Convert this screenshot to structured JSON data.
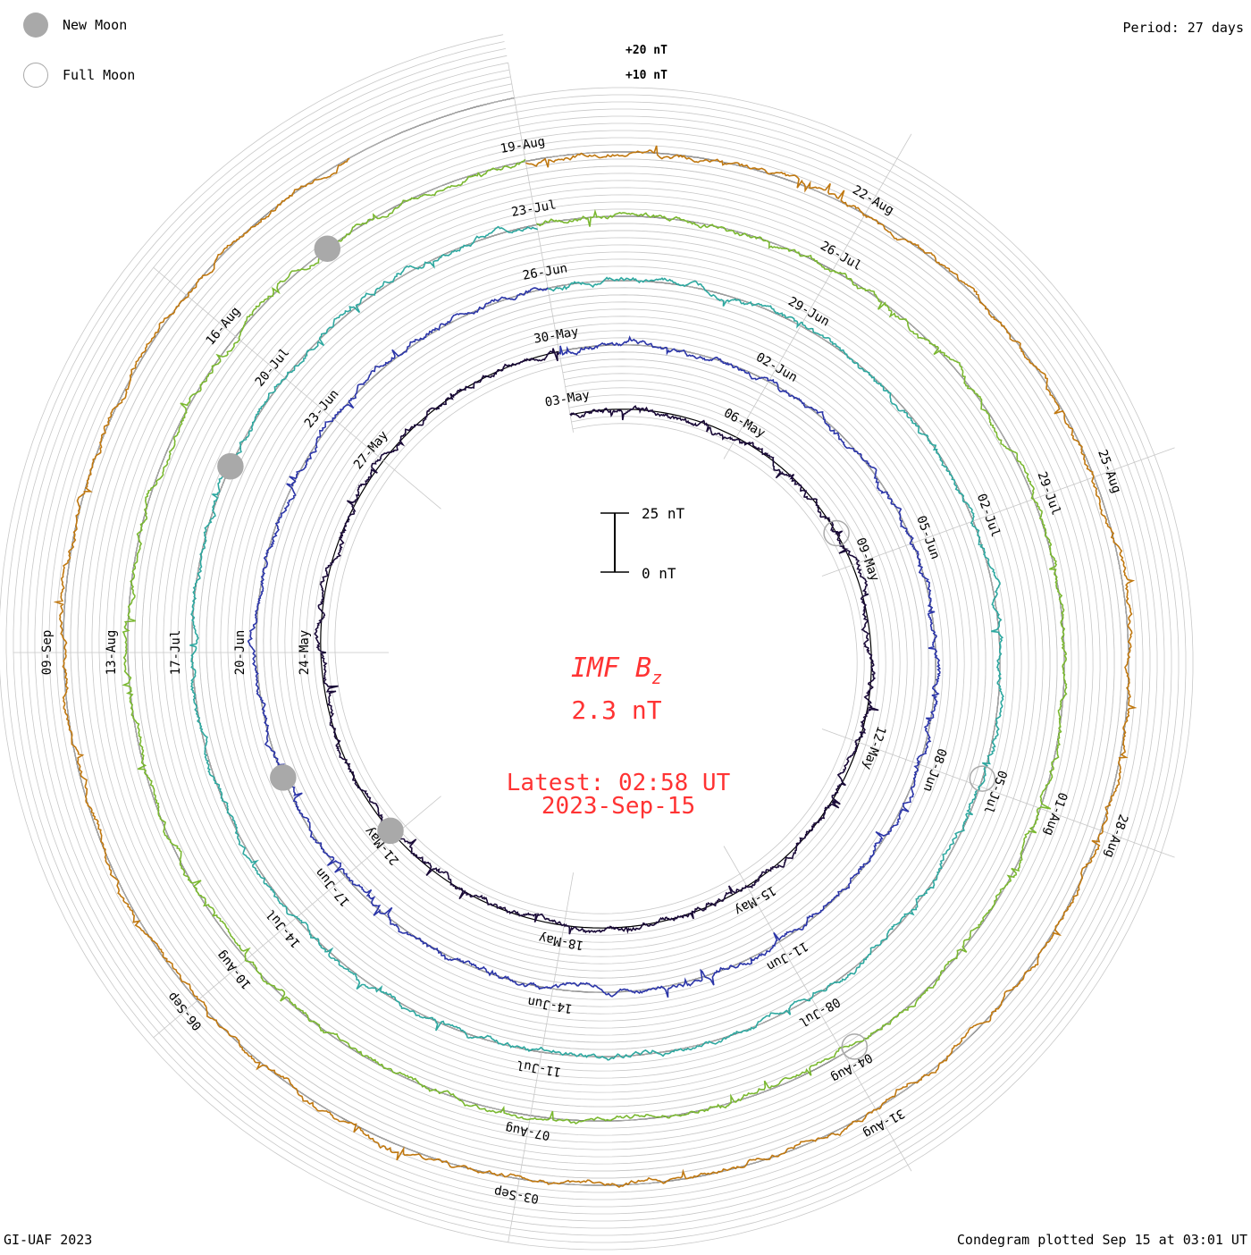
{
  "legend": {
    "new_moon_label": "New Moon",
    "full_moon_label": "Full Moon"
  },
  "period_label": "Period: 27 days",
  "footer_left": "GI-UAF 2023",
  "footer_right": "Condegram plotted Sep 15 at 03:01 UT",
  "scale": {
    "ref_high": "+20 nT",
    "ref_mid": "+10 nT",
    "bar_top": "25 nT",
    "bar_bottom": "0 nT"
  },
  "center": {
    "title_main": "IMF B",
    "title_sub": "z",
    "value": "2.3 nT",
    "latest": "Latest: 02:58 UT",
    "date": "2023-Sep-15"
  },
  "colors": {
    "grid": "#c8c8c8",
    "text_accent": "#ff3333",
    "moon": "#a9a9a9"
  },
  "chart_data": {
    "type": "line",
    "layout": "spiral-condegram",
    "period_days": 27,
    "title": "IMF Bz",
    "units": "nT",
    "spokes": [
      {
        "ring": 0,
        "dates": [
          "03-May",
          "06-May",
          "09-May",
          "12-May",
          "15-May",
          "18-May",
          "21-May",
          "24-May",
          "27-May"
        ]
      },
      {
        "ring": 1,
        "dates": [
          "30-May",
          "02-Jun",
          "05-Jun",
          "08-Jun",
          "11-Jun",
          "14-Jun",
          "17-Jun",
          "20-Jun",
          "23-Jun"
        ]
      },
      {
        "ring": 2,
        "dates": [
          "26-Jun",
          "29-Jun",
          "02-Jul",
          "05-Jul",
          "08-Jul",
          "11-Jul",
          "14-Jul",
          "17-Jul",
          "20-Jul"
        ]
      },
      {
        "ring": 3,
        "dates": [
          "23-Jul",
          "26-Jul",
          "29-Jul",
          "01-Aug",
          "04-Aug",
          "07-Aug",
          "10-Aug",
          "13-Aug",
          "16-Aug"
        ]
      },
      {
        "ring": 4,
        "dates": [
          "19-Aug",
          "22-Aug",
          "25-Aug",
          "28-Aug",
          "31-Aug",
          "03-Sep",
          "06-Sep",
          "09-Sep"
        ]
      }
    ],
    "series": [
      {
        "ring": 0,
        "color": "#1a0a38",
        "start": "2023-05-01",
        "end": "2023-05-28"
      },
      {
        "ring": 1,
        "color": "#2b35a8",
        "start": "2023-05-28",
        "end": "2023-06-24"
      },
      {
        "ring": 2,
        "color": "#2ea8a0",
        "start": "2023-06-24",
        "end": "2023-07-21"
      },
      {
        "ring": 3,
        "color": "#7ab830",
        "start": "2023-07-21",
        "end": "2023-08-17"
      },
      {
        "ring": 4,
        "color": "#c07810",
        "start": "2023-08-17",
        "end": "2023-09-15"
      }
    ],
    "current_value": 2.3,
    "latest_time": "02:58 UT",
    "latest_date": "2023-Sep-15"
  }
}
